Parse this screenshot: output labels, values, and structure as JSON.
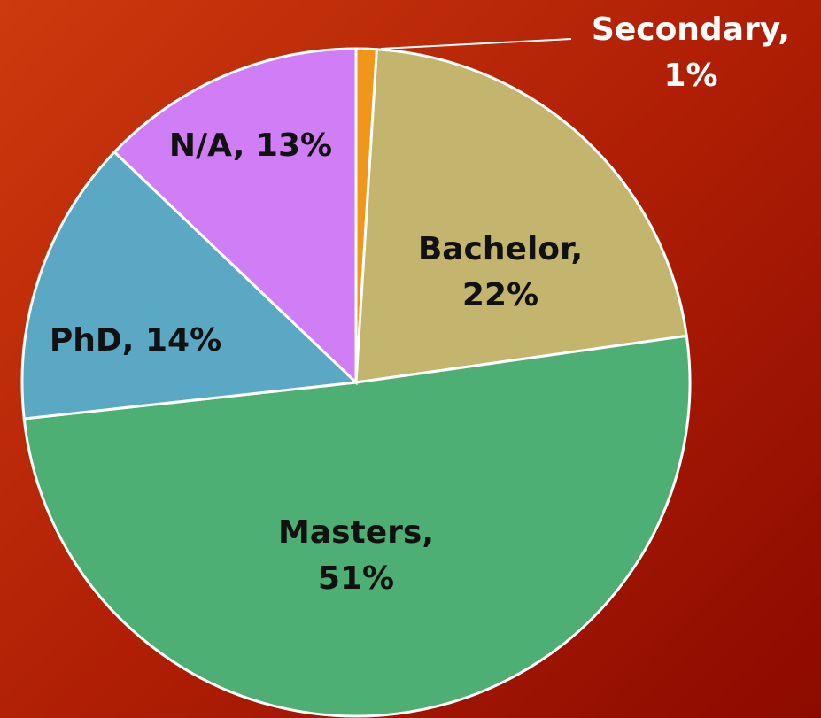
{
  "chart_data": {
    "type": "pie",
    "categories": [
      "Secondary",
      "Bachelor",
      "Masters",
      "PhD",
      "N/A"
    ],
    "values": [
      1,
      22,
      51,
      14,
      13
    ],
    "value_labels": [
      "Secondary, 1%",
      "Bachelor, 22%",
      "Masters, 51%",
      "PhD, 14%",
      "N/A, 13%"
    ],
    "colors": [
      "#f0961a",
      "#c3b56e",
      "#4daf74",
      "#5aa8c3",
      "#d07ef5"
    ]
  }
}
